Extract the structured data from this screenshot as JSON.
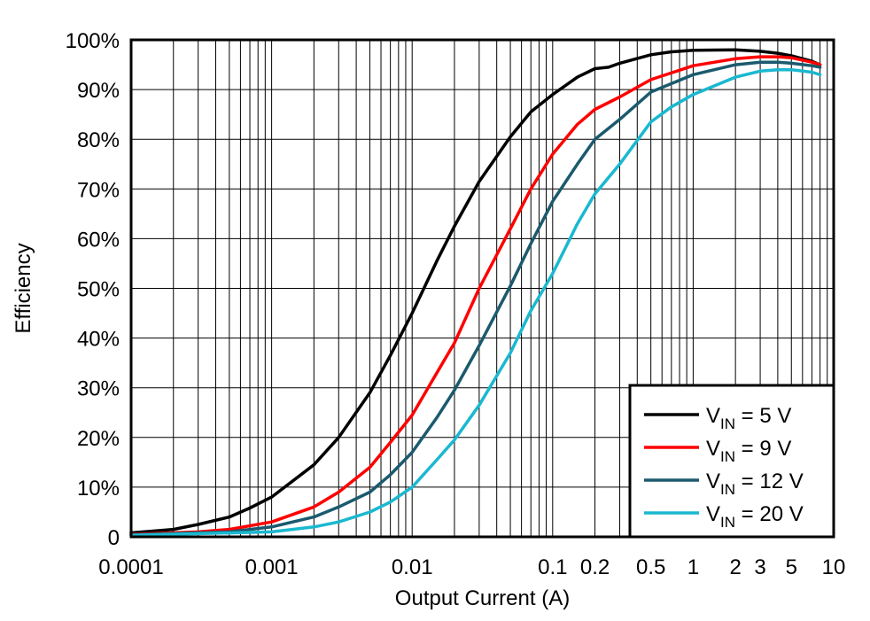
{
  "chart_data": {
    "type": "line",
    "xlabel": "Output Current (A)",
    "ylabel": "Efficiency",
    "x_scale": "log",
    "xlim": [
      0.0001,
      10
    ],
    "ylim": [
      0,
      100
    ],
    "grid": true,
    "legend_position": "bottom-right",
    "x_ticks": [
      {
        "value": 0.0001,
        "label": "0.0001"
      },
      {
        "value": 0.001,
        "label": "0.001"
      },
      {
        "value": 0.01,
        "label": "0.01"
      },
      {
        "value": 0.1,
        "label": "0.1"
      },
      {
        "value": 0.2,
        "label": "0.2"
      },
      {
        "value": 0.5,
        "label": "0.5"
      },
      {
        "value": 1,
        "label": "1"
      },
      {
        "value": 2,
        "label": "2"
      },
      {
        "value": 3,
        "label": "3"
      },
      {
        "value": 5,
        "label": "5"
      },
      {
        "value": 10,
        "label": "10"
      }
    ],
    "y_ticks": [
      {
        "value": 0,
        "label": "0"
      },
      {
        "value": 10,
        "label": "10%"
      },
      {
        "value": 20,
        "label": "20%"
      },
      {
        "value": 30,
        "label": "30%"
      },
      {
        "value": 40,
        "label": "40%"
      },
      {
        "value": 50,
        "label": "50%"
      },
      {
        "value": 60,
        "label": "60%"
      },
      {
        "value": 70,
        "label": "70%"
      },
      {
        "value": 80,
        "label": "80%"
      },
      {
        "value": 90,
        "label": "90%"
      },
      {
        "value": 100,
        "label": "100%"
      }
    ],
    "series": [
      {
        "name_prefix": "V",
        "name_sub": "IN",
        "name_suffix": " = 5 V",
        "color": "#000000",
        "x": [
          0.0001,
          0.0002,
          0.0003,
          0.0005,
          0.0007,
          0.001,
          0.002,
          0.003,
          0.005,
          0.007,
          0.01,
          0.015,
          0.02,
          0.03,
          0.05,
          0.07,
          0.1,
          0.15,
          0.2,
          0.25,
          0.3,
          0.5,
          0.7,
          1,
          2,
          3,
          4,
          5,
          7,
          8
        ],
        "y": [
          0.8,
          1.5,
          2.5,
          4,
          5.8,
          8,
          14.5,
          20,
          29,
          36.5,
          45,
          55.5,
          62.5,
          71.5,
          80.5,
          85.5,
          89,
          92.5,
          94.2,
          94.5,
          95.3,
          97,
          97.6,
          97.9,
          98,
          97.7,
          97.3,
          96.8,
          95.7,
          95
        ]
      },
      {
        "name_prefix": "V",
        "name_sub": "IN",
        "name_suffix": " = 9 V",
        "color": "#ff0000",
        "x": [
          0.0001,
          0.0003,
          0.0005,
          0.001,
          0.002,
          0.003,
          0.005,
          0.007,
          0.01,
          0.015,
          0.02,
          0.03,
          0.05,
          0.07,
          0.1,
          0.15,
          0.2,
          0.3,
          0.5,
          1,
          2,
          3,
          4,
          5,
          7,
          8
        ],
        "y": [
          0.5,
          1,
          1.5,
          3,
          6,
          9,
          14,
          19,
          24.5,
          33,
          39,
          50,
          62,
          70,
          77,
          83,
          86,
          88.5,
          92,
          94.8,
          96.2,
          96.6,
          96.6,
          96.4,
          95.5,
          95
        ]
      },
      {
        "name_prefix": "V",
        "name_sub": "IN",
        "name_suffix": " = 12 V",
        "color": "#1b5a6e",
        "x": [
          0.0001,
          0.0005,
          0.001,
          0.002,
          0.003,
          0.005,
          0.007,
          0.01,
          0.015,
          0.02,
          0.03,
          0.05,
          0.07,
          0.1,
          0.15,
          0.2,
          0.3,
          0.5,
          1,
          2,
          3,
          4,
          5,
          7,
          8
        ],
        "y": [
          0.4,
          1,
          2,
          4,
          6,
          9,
          12.5,
          17,
          24,
          29.5,
          38.5,
          50.5,
          59,
          67.5,
          75,
          80,
          84,
          89.5,
          93,
          95,
          95.5,
          95.5,
          95.3,
          94.8,
          94.5
        ]
      },
      {
        "name_prefix": "V",
        "name_sub": "IN",
        "name_suffix": " = 20 V",
        "color": "#1ab8d0",
        "x": [
          0.0001,
          0.001,
          0.002,
          0.003,
          0.005,
          0.007,
          0.01,
          0.015,
          0.02,
          0.03,
          0.05,
          0.07,
          0.1,
          0.15,
          0.2,
          0.3,
          0.5,
          0.7,
          1,
          2,
          3,
          4,
          5,
          7,
          8
        ],
        "y": [
          0.3,
          1,
          2,
          3,
          5,
          7,
          10,
          15.5,
          19.5,
          26.5,
          37,
          45.5,
          53,
          63,
          69,
          75,
          83.5,
          86.5,
          89,
          92.5,
          93.7,
          94,
          94,
          93.5,
          93
        ]
      }
    ]
  }
}
